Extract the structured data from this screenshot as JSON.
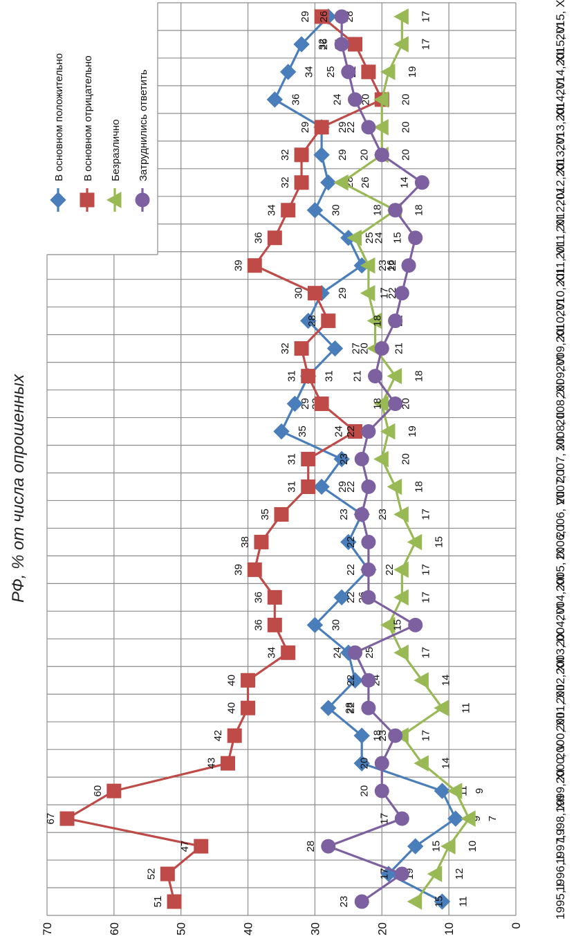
{
  "chart_data": {
    "type": "line",
    "subtitle": "РФ, % от числа опрошенных",
    "categories": [
      "1995, I",
      "1996, I",
      "1997, I",
      "1998, XII",
      "1999, XI",
      "2000, V",
      "2000, XII",
      "2001, XII",
      "2002, XII",
      "2003, IX",
      "2004, VI",
      "2004, XII",
      "2005, IX",
      "2006, I",
      "2006, VII",
      "2007, I",
      "2007, VII",
      "2008, II",
      "2008, XI",
      "2009, VI",
      "2009, XII",
      "2010, VI",
      "2010, XII",
      "2011, VI",
      "2011, XI",
      "2012, IV",
      "2012, XII",
      "2013, VI",
      "2013, XII",
      "2014, VI",
      "2014, XII",
      "2015, VI",
      "2015, XII"
    ],
    "ylim": [
      0,
      70
    ],
    "yticks": [
      0,
      10,
      20,
      30,
      40,
      50,
      60,
      70
    ],
    "grid": true,
    "orientation": "rotated 90° clockwise (value axis along the bottom, categories along the right)",
    "legend_position": "top",
    "series": [
      {
        "name": "В основном положительно",
        "color": "#4a7ebb",
        "marker": "diamond",
        "values": [
          11,
          19,
          15,
          9,
          11,
          23,
          23,
          28,
          24,
          25,
          30,
          26,
          22,
          25,
          23,
          29,
          26,
          35,
          33,
          31,
          27,
          31,
          29,
          23,
          25,
          30,
          28,
          29,
          29,
          36,
          34,
          32,
          28
        ]
      },
      {
        "name": "В основном отрицательно",
        "color": "#be4b48",
        "marker": "square",
        "values": [
          51,
          52,
          47,
          67,
          60,
          43,
          42,
          40,
          40,
          34,
          36,
          36,
          39,
          38,
          35,
          31,
          31,
          24,
          29,
          31,
          32,
          28,
          30,
          39,
          36,
          34,
          32,
          32,
          29,
          20,
          22,
          24,
          29
        ]
      },
      {
        "name": "Безразлично",
        "color": "#98b954",
        "marker": "triangle",
        "values": [
          15,
          12,
          10,
          7,
          9,
          14,
          17,
          11,
          14,
          17,
          19,
          17,
          17,
          15,
          17,
          18,
          20,
          19,
          20,
          18,
          21,
          21,
          22,
          22,
          24,
          18,
          26,
          20,
          20,
          20,
          19,
          17,
          17
        ]
      },
      {
        "name": "Затруднились ответить",
        "color": "#7d60a0",
        "marker": "circle",
        "values": [
          23,
          17,
          28,
          17,
          20,
          20,
          18,
          22,
          22,
          24,
          15,
          22,
          22,
          22,
          23,
          22,
          23,
          22,
          18,
          21,
          20,
          18,
          17,
          16,
          15,
          18,
          14,
          20,
          22,
          24,
          25,
          26,
          26
        ]
      }
    ]
  }
}
